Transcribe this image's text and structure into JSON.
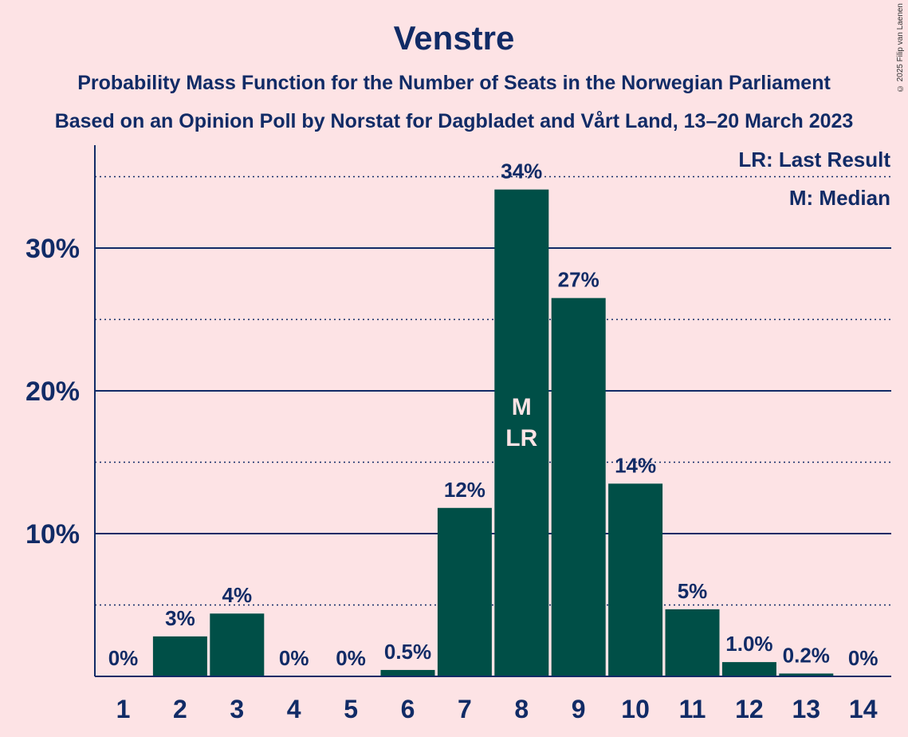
{
  "chart_data": {
    "type": "bar",
    "title": "Venstre",
    "subtitle_1": "Probability Mass Function for the Number of Seats in the Norwegian Parliament",
    "subtitle_2": "Based on an Opinion Poll by Norstat for Dagbladet and Vårt Land, 13–20 March 2023",
    "categories": [
      "1",
      "2",
      "3",
      "4",
      "5",
      "6",
      "7",
      "8",
      "9",
      "10",
      "11",
      "12",
      "13",
      "14"
    ],
    "values": [
      0,
      2.8,
      4.4,
      0,
      0,
      0.45,
      11.8,
      34.1,
      26.5,
      13.5,
      4.7,
      1.0,
      0.2,
      0
    ],
    "value_labels": [
      "0%",
      "3%",
      "4%",
      "0%",
      "0%",
      "0.5%",
      "12%",
      "34%",
      "27%",
      "14%",
      "5%",
      "1.0%",
      "0.2%",
      "0%"
    ],
    "yticks": [
      10,
      20,
      30
    ],
    "ytick_labels": [
      "10%",
      "20%",
      "30%"
    ],
    "ylim": [
      0,
      37
    ],
    "median_category": "8",
    "last_result_category": "8",
    "median_marker": "M",
    "last_result_marker": "LR",
    "legend": [
      "LR: Last Result",
      "M: Median"
    ],
    "legend_position": "top-right",
    "bar_color": "#004f47",
    "text_color": "#112b66",
    "background_color": "#fde3e5",
    "grid": "solid major lines at 10% steps, dotted minor lines at 5% steps"
  },
  "copyright": "© 2025 Filip van Laenen"
}
